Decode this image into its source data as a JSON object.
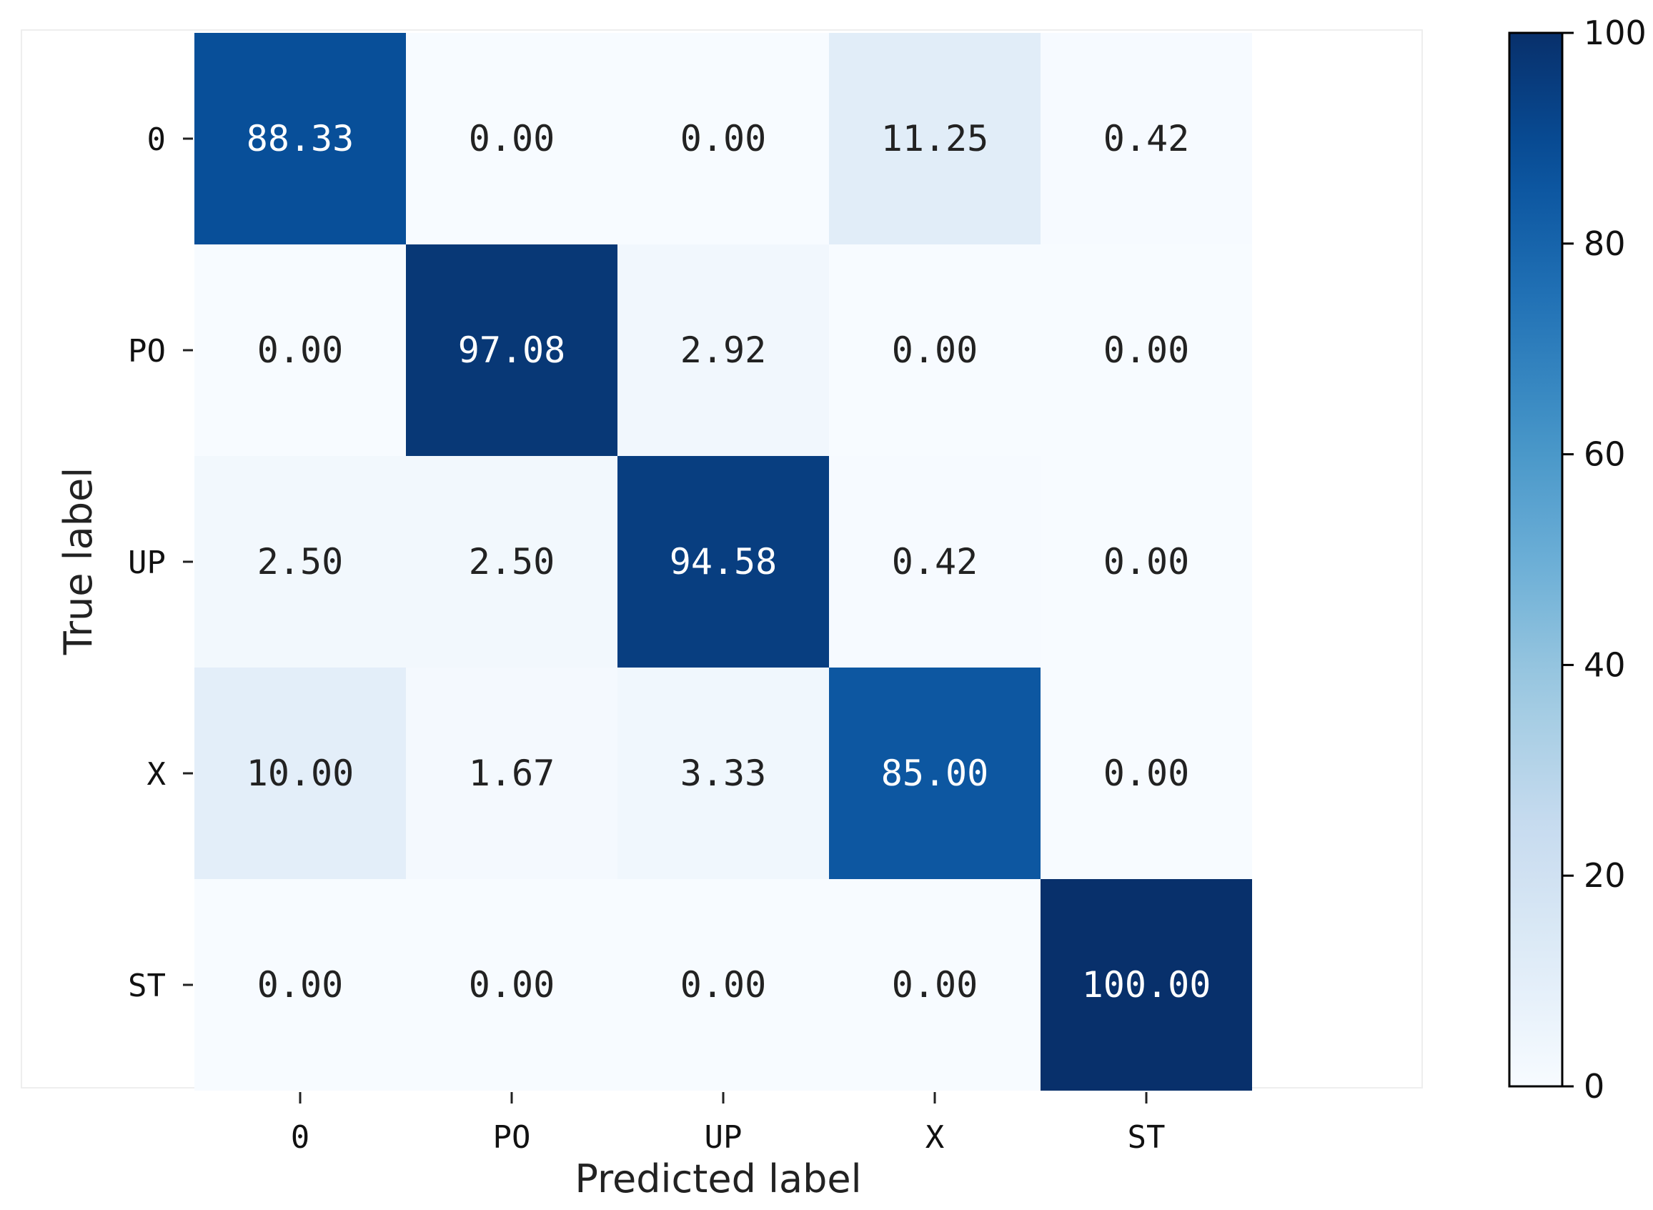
{
  "chart_data": {
    "type": "heatmap",
    "title": "",
    "xlabel": "Predicted label",
    "ylabel": "True label",
    "x_categories": [
      "0",
      "PO",
      "UP",
      "X",
      "ST"
    ],
    "y_categories": [
      "0",
      "PO",
      "UP",
      "X",
      "ST"
    ],
    "matrix": [
      [
        88.33,
        0.0,
        0.0,
        11.25,
        0.42
      ],
      [
        0.0,
        97.08,
        2.92,
        0.0,
        0.0
      ],
      [
        2.5,
        2.5,
        94.58,
        0.42,
        0.0
      ],
      [
        10.0,
        1.67,
        3.33,
        85.0,
        0.0
      ],
      [
        0.0,
        0.0,
        0.0,
        0.0,
        100.0
      ]
    ],
    "value_format": "0.00",
    "colormap": "Blues",
    "colorbar": {
      "range": [
        0,
        100
      ],
      "ticks": [
        0,
        20,
        40,
        60,
        80,
        100
      ],
      "tick_labels": [
        "0",
        "20",
        "40",
        "60",
        "80",
        "100"
      ]
    },
    "colors": {
      "low": "#f7fbff",
      "high": "#08306b",
      "text_dark": "#222222",
      "text_light": "#ffffff"
    },
    "grid": false,
    "legend": "colorbar-right"
  }
}
